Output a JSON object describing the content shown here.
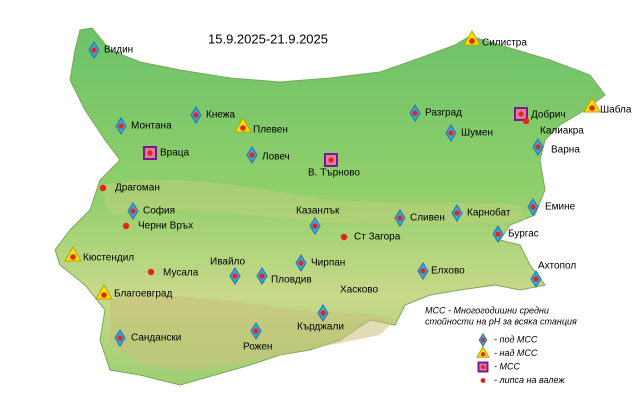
{
  "header": {
    "title": "15.9.2025-21.9.2025"
  },
  "stations": [
    {
      "label": "Видин",
      "type": "under"
    },
    {
      "label": "Силистра",
      "type": "above"
    },
    {
      "label": "Шабла",
      "type": "above"
    },
    {
      "label": "Добрич",
      "type": "equal"
    },
    {
      "label": "Калиакра",
      "type": "no-rain"
    },
    {
      "label": "Разград",
      "type": "under"
    },
    {
      "label": "Шумен",
      "type": "under"
    },
    {
      "label": "Варна",
      "type": "under"
    },
    {
      "label": "Монтана",
      "type": "under"
    },
    {
      "label": "Кнежа",
      "type": "under"
    },
    {
      "label": "Плевен",
      "type": "above"
    },
    {
      "label": "Враца",
      "type": "equal"
    },
    {
      "label": "Ловеч",
      "type": "under"
    },
    {
      "label": "В. Търново",
      "type": "equal"
    },
    {
      "label": "Драгоман",
      "type": "no-rain"
    },
    {
      "label": "София",
      "type": "under"
    },
    {
      "label": "Черни Връх",
      "type": "no-rain"
    },
    {
      "label": "Казанлък",
      "type": "under"
    },
    {
      "label": "Ст Загора",
      "type": "no-rain"
    },
    {
      "label": "Сливен",
      "type": "under"
    },
    {
      "label": "Карнобат",
      "type": "under"
    },
    {
      "label": "Емине",
      "type": "under"
    },
    {
      "label": "Бургас",
      "type": "under"
    },
    {
      "label": "Кюстендил",
      "type": "above"
    },
    {
      "label": "Мусала",
      "type": "no-rain"
    },
    {
      "label": "Ивайло",
      "type": "under"
    },
    {
      "label": "Пловдив",
      "type": "under"
    },
    {
      "label": "Чирпан",
      "type": "under"
    },
    {
      "label": "Елхово",
      "type": "under"
    },
    {
      "label": "Ахтопол",
      "type": "under"
    },
    {
      "label": "Благоевград",
      "type": "above"
    },
    {
      "label": "Хасково",
      "type": "under"
    },
    {
      "label": "Кърджали",
      "type": "under"
    },
    {
      "label": "Сандански",
      "type": "under"
    },
    {
      "label": "Рожен",
      "type": "under"
    }
  ],
  "legend": {
    "note": [
      "МСС - Многогодишни средни",
      "стойности    на pH за всяка станция"
    ],
    "items": [
      {
        "label": "- под МСС",
        "type": "under"
      },
      {
        "label": "- над МСС",
        "type": "above"
      },
      {
        "label": "- МСС",
        "type": "equal"
      },
      {
        "label": "- липса на валеж",
        "type": "no-rain"
      }
    ]
  }
}
